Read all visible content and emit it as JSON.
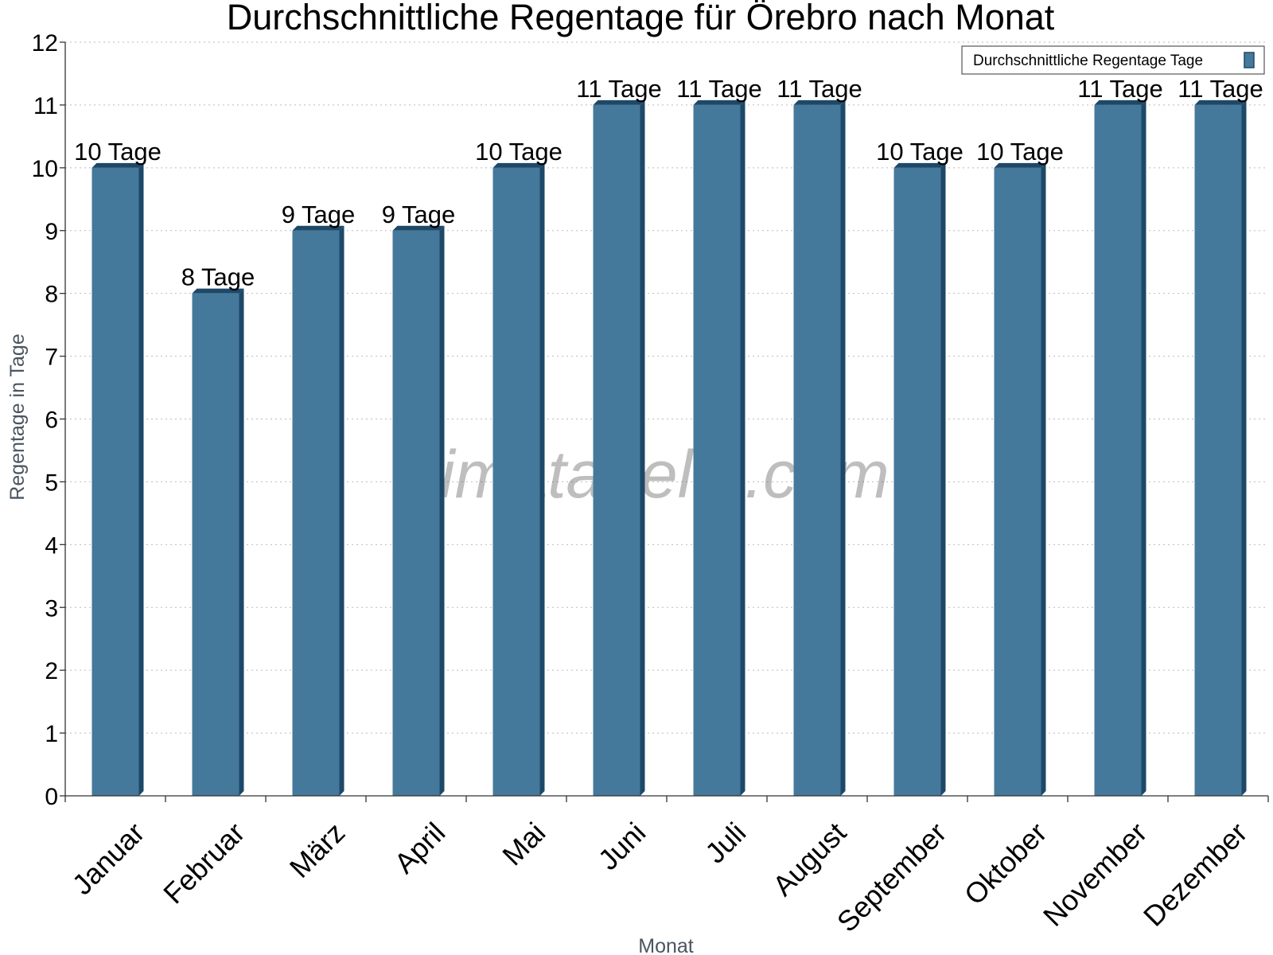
{
  "chart_data": {
    "type": "bar",
    "title": "Durchschnittliche Regentage für Örebro nach Monat",
    "xlabel": "Monat",
    "ylabel": "Regentage in Tage",
    "ylim": [
      0,
      12
    ],
    "yticks": [
      0,
      1,
      2,
      3,
      4,
      5,
      6,
      7,
      8,
      9,
      10,
      11,
      12
    ],
    "grid": true,
    "legend_position": "top-right",
    "categories": [
      "Januar",
      "Februar",
      "März",
      "April",
      "Mai",
      "Juni",
      "Juli",
      "August",
      "September",
      "Oktober",
      "November",
      "Dezember"
    ],
    "series": [
      {
        "name": "Durchschnittliche Regentage Tage",
        "values": [
          10,
          8,
          9,
          9,
          10,
          11,
          11,
          11,
          10,
          10,
          11,
          11
        ],
        "labels": [
          "10 Tage",
          "8 Tage",
          "9 Tage",
          "9 Tage",
          "10 Tage",
          "11 Tage",
          "11 Tage",
          "11 Tage",
          "10 Tage",
          "10 Tage",
          "11 Tage",
          "11 Tage"
        ],
        "color": "#45799b",
        "edge_color": "#1d4868"
      }
    ]
  },
  "watermark": "klimatabelle.com"
}
